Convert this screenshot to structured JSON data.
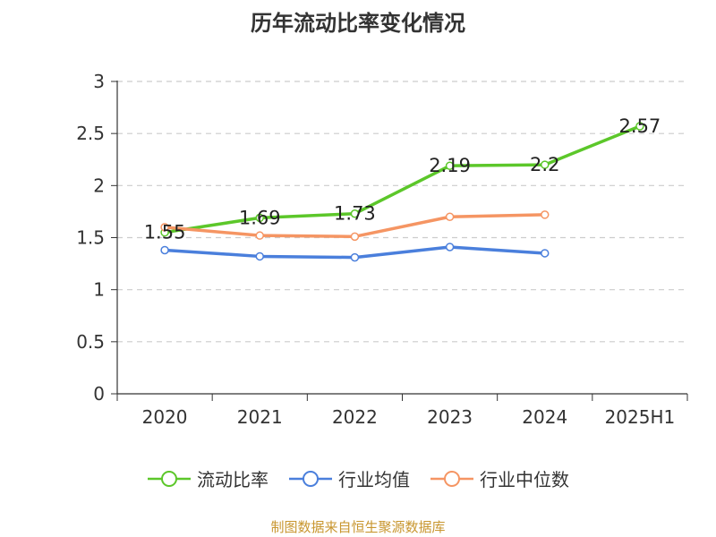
{
  "page": {
    "title": "历年流动比率变化情况",
    "source": "制图数据来自恒生聚源数据库"
  },
  "chart_data": {
    "type": "line",
    "categories": [
      "2020",
      "2021",
      "2022",
      "2023",
      "2024",
      "2025H1"
    ],
    "ylim": [
      0,
      3
    ],
    "yticks": [
      0,
      0.5,
      1,
      1.5,
      2,
      2.5,
      3
    ],
    "grid": true,
    "legend_position": "bottom",
    "series": [
      {
        "name": "流动比率",
        "color": "#5cc72a",
        "values": [
          1.55,
          1.69,
          1.73,
          2.19,
          2.2,
          2.57
        ],
        "show_labels": true
      },
      {
        "name": "行业均值",
        "color": "#4a7fdc",
        "values": [
          1.38,
          1.32,
          1.31,
          1.41,
          1.35,
          null
        ],
        "show_labels": false
      },
      {
        "name": "行业中位数",
        "color": "#f59563",
        "values": [
          1.6,
          1.52,
          1.51,
          1.7,
          1.72,
          null
        ],
        "show_labels": false
      }
    ]
  }
}
